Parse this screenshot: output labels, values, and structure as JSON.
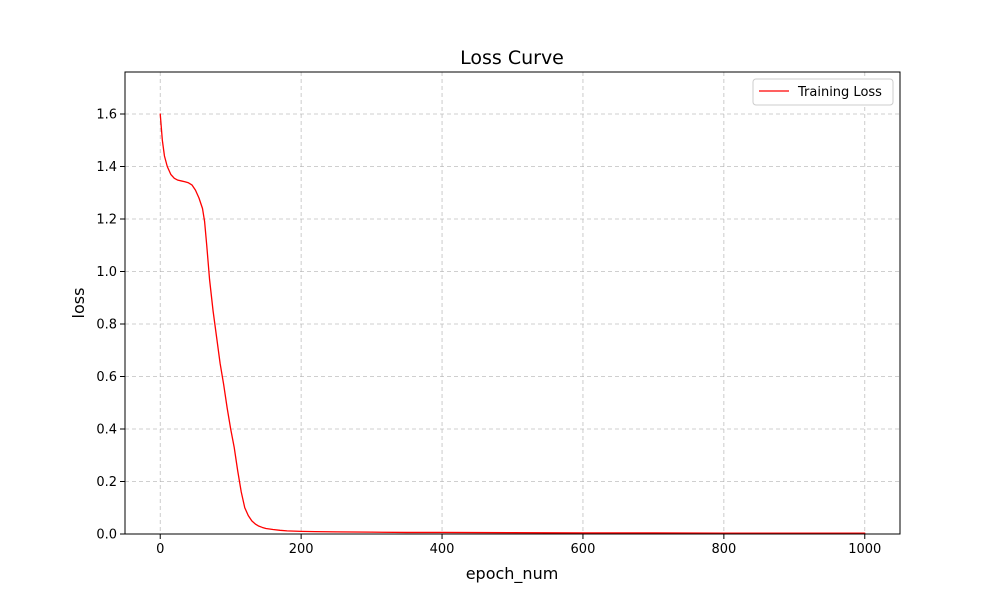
{
  "chart_data": {
    "type": "line",
    "title": "Loss Curve",
    "xlabel": "epoch_num",
    "ylabel": "loss",
    "xlim": [
      -50,
      1050
    ],
    "ylim": [
      0,
      1.76
    ],
    "xticks": [
      0,
      200,
      400,
      600,
      800,
      1000
    ],
    "yticks": [
      0.0,
      0.2,
      0.4,
      0.6,
      0.8,
      1.0,
      1.2,
      1.4,
      1.6
    ],
    "xtick_labels": [
      "0",
      "200",
      "400",
      "600",
      "800",
      "1000"
    ],
    "ytick_labels": [
      "0.0",
      "0.2",
      "0.4",
      "0.6",
      "0.8",
      "1.0",
      "1.2",
      "1.4",
      "1.6"
    ],
    "grid": true,
    "legend_position": "top-right",
    "series": [
      {
        "name": "Training Loss",
        "color": "#ff0000",
        "x": [
          0,
          3,
          6,
          10,
          15,
          20,
          25,
          30,
          35,
          40,
          45,
          50,
          55,
          60,
          63,
          66,
          70,
          75,
          80,
          85,
          90,
          95,
          100,
          105,
          110,
          115,
          120,
          125,
          130,
          135,
          140,
          145,
          150,
          160,
          170,
          180,
          190,
          200,
          220,
          250,
          300,
          350,
          400,
          500,
          600,
          700,
          800,
          900,
          1000
        ],
        "y": [
          1.6,
          1.5,
          1.44,
          1.4,
          1.37,
          1.355,
          1.348,
          1.345,
          1.342,
          1.338,
          1.33,
          1.31,
          1.28,
          1.24,
          1.19,
          1.1,
          0.97,
          0.85,
          0.75,
          0.65,
          0.57,
          0.48,
          0.4,
          0.33,
          0.24,
          0.16,
          0.1,
          0.07,
          0.05,
          0.038,
          0.03,
          0.025,
          0.021,
          0.017,
          0.014,
          0.012,
          0.011,
          0.01,
          0.009,
          0.008,
          0.007,
          0.006,
          0.006,
          0.005,
          0.004,
          0.004,
          0.003,
          0.003,
          0.003
        ]
      }
    ]
  }
}
